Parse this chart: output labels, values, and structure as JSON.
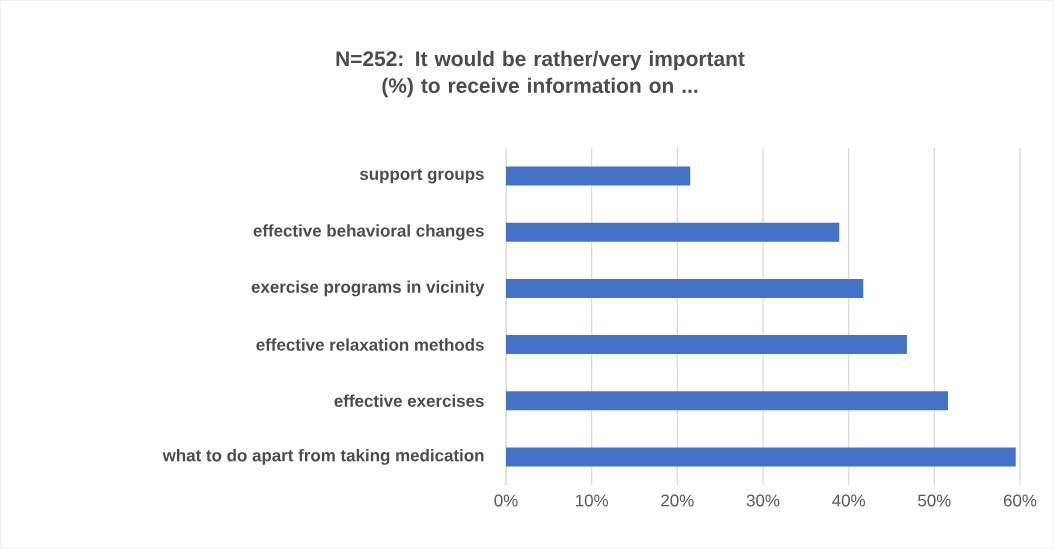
{
  "chart_data": {
    "type": "bar",
    "orientation": "horizontal",
    "title": "N=252: It would be rather/very important (%) to receive information on ...",
    "categories": [
      "support groups",
      "effective behavioral changes",
      "exercise programs in vicinity",
      "effective relaxation methods",
      "effective exercises",
      "what to do apart from taking medication"
    ],
    "values": [
      21.5,
      38.9,
      41.7,
      46.8,
      51.6,
      59.5
    ],
    "color": "#4472c4",
    "xlim": [
      0,
      60
    ],
    "xticks": [
      {
        "value": 0,
        "label": "0%"
      },
      {
        "value": 10,
        "label": "10%"
      },
      {
        "value": 20,
        "label": "20%"
      },
      {
        "value": 30,
        "label": "30%"
      },
      {
        "value": 40,
        "label": "40%"
      },
      {
        "value": 50,
        "label": "50%"
      },
      {
        "value": 60,
        "label": "60%"
      }
    ],
    "grid": "x"
  }
}
